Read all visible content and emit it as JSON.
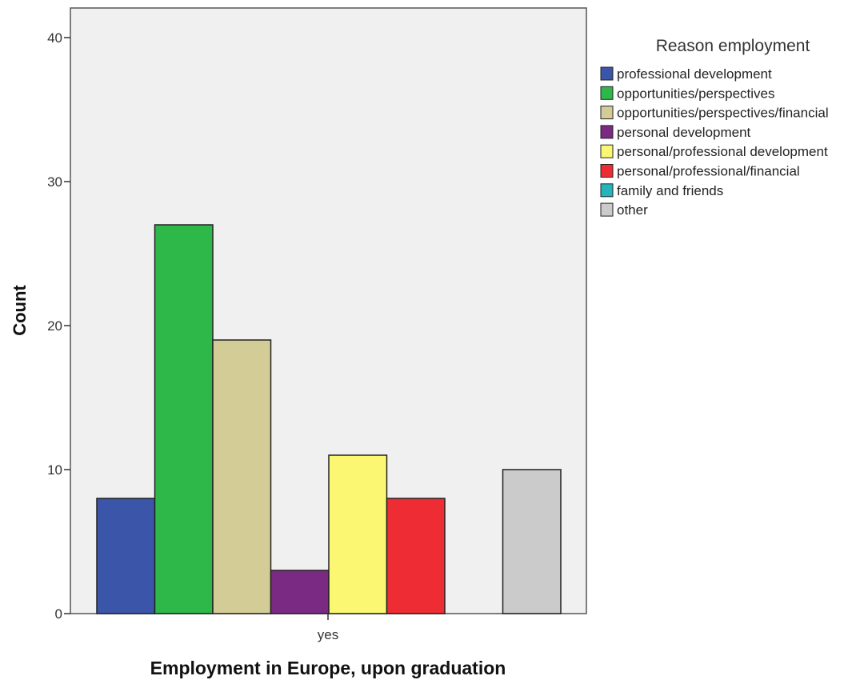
{
  "chart_data": {
    "type": "bar",
    "xlabel": "Employment in Europe, upon graduation",
    "ylabel": "Count",
    "categories": [
      "yes"
    ],
    "ylim": [
      0,
      42
    ],
    "yticks": [
      0,
      10,
      20,
      30,
      40
    ],
    "grid": false,
    "legend": {
      "title": "Reason employment",
      "position": "right"
    },
    "series": [
      {
        "name": "professional development",
        "values": [
          8
        ],
        "color": "#3b55a8"
      },
      {
        "name": "opportunities/perspectives",
        "values": [
          27
        ],
        "color": "#2eb84a"
      },
      {
        "name": "opportunities/perspectives/financial",
        "values": [
          19
        ],
        "color": "#d4cc97"
      },
      {
        "name": "personal development",
        "values": [
          3
        ],
        "color": "#7b2a84"
      },
      {
        "name": "personal/professional development",
        "values": [
          11
        ],
        "color": "#fbf773"
      },
      {
        "name": "personal/professional/financial",
        "values": [
          8
        ],
        "color": "#ee2c33"
      },
      {
        "name": "family and friends",
        "values": [
          0
        ],
        "color": "#26b4bc"
      },
      {
        "name": "other",
        "values": [
          10
        ],
        "color": "#cbcbcb"
      }
    ]
  }
}
